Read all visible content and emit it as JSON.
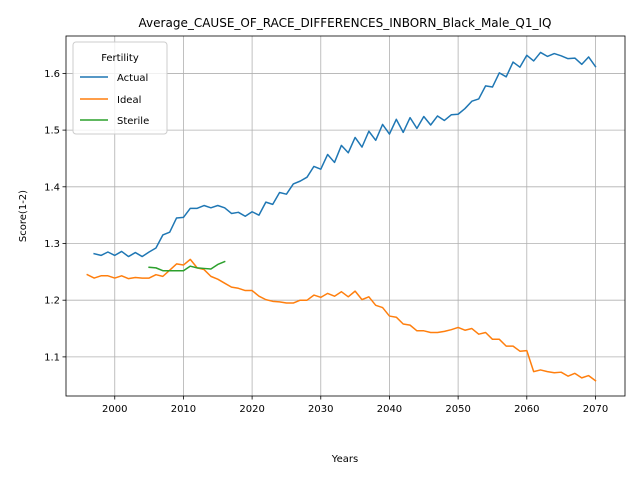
{
  "chart_data": {
    "type": "line",
    "title": "Average_CAUSE_OF_RACE_DIFFERENCES_INBORN_Black_Male_Q1_IQ",
    "xlabel": "Years",
    "ylabel": "Score(1-2)",
    "xlim": [
      1992.9,
      2074.3
    ],
    "ylim": [
      1.031,
      1.666
    ],
    "x_ticks": [
      2000,
      2010,
      2020,
      2030,
      2040,
      2050,
      2060,
      2070
    ],
    "x_tick_labels": [
      "2000",
      "2010",
      "2020",
      "2030",
      "2040",
      "2050",
      "2060",
      "2070"
    ],
    "y_ticks": [
      1.1,
      1.2,
      1.3,
      1.4,
      1.5,
      1.6
    ],
    "y_tick_labels": [
      "1.1",
      "1.2",
      "1.3",
      "1.4",
      "1.5",
      "1.6"
    ],
    "grid": true,
    "legend": {
      "title": "Fertility",
      "placement": "upper-left"
    },
    "series": [
      {
        "name": "Actual",
        "color": "#1f77b4",
        "x": [
          1997,
          1998,
          1999,
          2000,
          2001,
          2002,
          2003,
          2004,
          2005,
          2006,
          2007,
          2008,
          2009,
          2010,
          2011,
          2012,
          2013,
          2014,
          2015,
          2016,
          2017,
          2018,
          2019,
          2020,
          2021,
          2022,
          2023,
          2024,
          2025,
          2026,
          2027,
          2028,
          2029,
          2030,
          2031,
          2032,
          2033,
          2034,
          2035,
          2036,
          2037,
          2038,
          2039,
          2040,
          2041,
          2042,
          2043,
          2044,
          2045,
          2046,
          2047,
          2048,
          2049,
          2050,
          2051,
          2052,
          2053,
          2054,
          2055,
          2056,
          2057,
          2058,
          2059,
          2060,
          2061,
          2062,
          2063,
          2064,
          2065,
          2066,
          2067,
          2068,
          2069,
          2070
        ],
        "values": [
          1.282,
          1.279,
          1.285,
          1.279,
          1.286,
          1.277,
          1.284,
          1.277,
          1.285,
          1.292,
          1.315,
          1.32,
          1.345,
          1.346,
          1.362,
          1.362,
          1.367,
          1.363,
          1.367,
          1.363,
          1.353,
          1.355,
          1.348,
          1.356,
          1.35,
          1.373,
          1.369,
          1.39,
          1.387,
          1.405,
          1.41,
          1.417,
          1.436,
          1.431,
          1.457,
          1.443,
          1.473,
          1.46,
          1.487,
          1.47,
          1.498,
          1.482,
          1.51,
          1.493,
          1.519,
          1.496,
          1.522,
          1.503,
          1.524,
          1.509,
          1.525,
          1.517,
          1.527,
          1.528,
          1.538,
          1.551,
          1.555,
          1.578,
          1.576,
          1.601,
          1.594,
          1.62,
          1.611,
          1.632,
          1.622,
          1.637,
          1.63,
          1.635,
          1.631,
          1.626,
          1.627,
          1.616,
          1.629,
          1.612
        ]
      },
      {
        "name": "Ideal",
        "color": "#ff7f0e",
        "x": [
          1996,
          1997,
          1998,
          1999,
          2000,
          2001,
          2002,
          2003,
          2004,
          2005,
          2006,
          2007,
          2008,
          2009,
          2010,
          2011,
          2012,
          2013,
          2014,
          2015,
          2016,
          2017,
          2018,
          2019,
          2020,
          2021,
          2022,
          2023,
          2024,
          2025,
          2026,
          2027,
          2028,
          2029,
          2030,
          2031,
          2032,
          2033,
          2034,
          2035,
          2036,
          2037,
          2038,
          2039,
          2040,
          2041,
          2042,
          2043,
          2044,
          2045,
          2046,
          2047,
          2048,
          2049,
          2050,
          2051,
          2052,
          2053,
          2054,
          2055,
          2056,
          2057,
          2058,
          2059,
          2060,
          2061,
          2062,
          2063,
          2064,
          2065,
          2066,
          2067,
          2068,
          2069,
          2070
        ],
        "values": [
          1.245,
          1.239,
          1.243,
          1.243,
          1.239,
          1.243,
          1.238,
          1.24,
          1.239,
          1.239,
          1.245,
          1.242,
          1.253,
          1.264,
          1.262,
          1.272,
          1.257,
          1.254,
          1.242,
          1.237,
          1.23,
          1.223,
          1.221,
          1.217,
          1.217,
          1.207,
          1.201,
          1.198,
          1.197,
          1.195,
          1.195,
          1.2,
          1.2,
          1.209,
          1.205,
          1.212,
          1.207,
          1.215,
          1.206,
          1.216,
          1.201,
          1.206,
          1.191,
          1.187,
          1.172,
          1.17,
          1.158,
          1.156,
          1.146,
          1.146,
          1.143,
          1.143,
          1.145,
          1.148,
          1.152,
          1.147,
          1.15,
          1.14,
          1.143,
          1.131,
          1.131,
          1.119,
          1.119,
          1.11,
          1.111,
          1.074,
          1.077,
          1.074,
          1.072,
          1.073,
          1.066,
          1.071,
          1.063,
          1.067,
          1.058
        ]
      },
      {
        "name": "Sterile",
        "color": "#2ca02c",
        "x": [
          2005,
          2006,
          2007,
          2008,
          2009,
          2010,
          2011,
          2012,
          2013,
          2014,
          2015,
          2016
        ],
        "values": [
          1.258,
          1.257,
          1.252,
          1.252,
          1.252,
          1.252,
          1.26,
          1.257,
          1.256,
          1.255,
          1.263,
          1.268
        ]
      }
    ]
  }
}
